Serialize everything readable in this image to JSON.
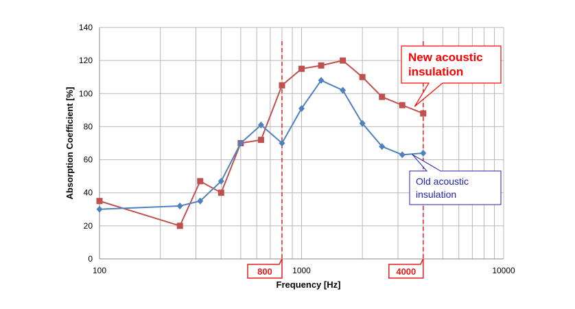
{
  "chart_data": {
    "type": "line",
    "x_scale": "log",
    "xlabel": "Frequency [Hz]",
    "ylabel": "Absorption Coefficient [%]",
    "xlim": [
      100,
      10000
    ],
    "ylim": [
      0,
      140
    ],
    "x_tick_labels": [
      "100",
      "1000",
      "10000"
    ],
    "y_tick_labels": [
      "0",
      "20",
      "40",
      "60",
      "80",
      "100",
      "120",
      "140"
    ],
    "grid": true,
    "series": [
      {
        "name": "New acoustic insulation",
        "color": "#c0504d",
        "marker": "square",
        "x": [
          100,
          250,
          315,
          400,
          500,
          630,
          800,
          1000,
          1250,
          1600,
          2000,
          2500,
          3150,
          4000
        ],
        "y": [
          35,
          20,
          47,
          40,
          70,
          72,
          105,
          115,
          117,
          120,
          110,
          98,
          93,
          88
        ]
      },
      {
        "name": "Old acoustic insulation",
        "color": "#4f81bd",
        "marker": "diamond",
        "x": [
          100,
          250,
          315,
          400,
          500,
          630,
          800,
          1000,
          1250,
          1600,
          2000,
          2500,
          3150,
          4000
        ],
        "y": [
          30,
          32,
          35,
          47,
          70,
          81,
          70,
          91,
          108,
          102,
          82,
          68,
          63,
          64
        ]
      }
    ],
    "reference_lines": [
      {
        "x": 800,
        "label": "800",
        "color": "#e31a1c"
      },
      {
        "x": 4000,
        "label": "4000",
        "color": "#e31a1c"
      }
    ],
    "callouts": {
      "new": {
        "lines": [
          "New acoustic",
          "insulation"
        ],
        "color": "#ff0000",
        "border": "#ff0000",
        "points_to_x": 3150
      },
      "old": {
        "lines": [
          "Old acoustic",
          "insulation"
        ],
        "color": "#1f1fb0",
        "border": "#1f1fb0",
        "points_to_x": 4000
      }
    }
  }
}
